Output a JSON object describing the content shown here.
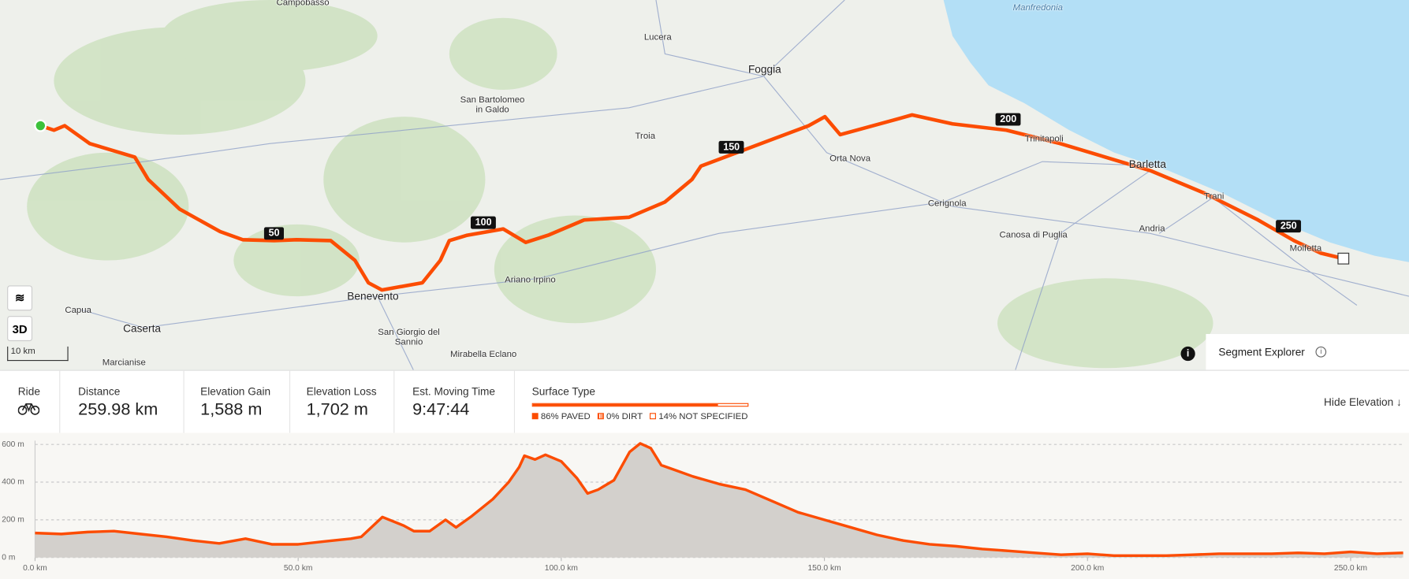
{
  "map": {
    "sea_label": "Manfredonia",
    "places": [
      "Campobasso",
      "Lucera",
      "Foggia",
      "San Bartolomeo in Galdo",
      "Troia",
      "Orta Nova",
      "Trinitapoli",
      "Barletta",
      "Cerignola",
      "Trani",
      "Andria",
      "Canosa di Puglia",
      "Molfetta",
      "Ariano Irpino",
      "Benevento",
      "Capua",
      "Caserta",
      "San Giorgio del Sannio",
      "Mirabella Eclano",
      "Marcianise"
    ],
    "km_markers": [
      "50",
      "100",
      "150",
      "200",
      "250"
    ],
    "three_d": "3D",
    "scale": "10 km",
    "segment_explorer": "Segment Explorer"
  },
  "stats": {
    "activity": "Ride",
    "items": [
      {
        "label": "Distance",
        "value": "259.98 km"
      },
      {
        "label": "Elevation Gain",
        "value": "1,588 m"
      },
      {
        "label": "Elevation Loss",
        "value": "1,702 m"
      },
      {
        "label": "Est. Moving Time",
        "value": "9:47:44"
      }
    ],
    "surface_label": "Surface Type",
    "surface_legend": [
      "86% PAVED",
      "0% DIRT",
      "14% NOT SPECIFIED"
    ],
    "hide_elevation": "Hide Elevation ↓"
  },
  "chart_data": {
    "type": "area",
    "color": "#fc4c02",
    "fill": "#d3d0cc",
    "grid": true,
    "x": [
      0,
      5,
      10,
      15,
      20,
      25,
      30,
      35,
      40,
      45,
      50,
      55,
      60,
      62,
      66,
      70,
      72,
      75,
      78,
      80,
      83,
      87,
      90,
      92,
      93,
      95,
      97,
      100,
      103,
      105,
      107,
      110,
      113,
      115,
      117,
      119,
      122,
      125,
      130,
      135,
      140,
      145,
      150,
      155,
      160,
      165,
      170,
      175,
      180,
      185,
      190,
      195,
      200,
      205,
      210,
      215,
      220,
      225,
      230,
      235,
      240,
      245,
      250,
      255,
      259.98
    ],
    "values": [
      130,
      125,
      135,
      140,
      125,
      110,
      90,
      75,
      100,
      70,
      70,
      85,
      100,
      110,
      215,
      170,
      140,
      140,
      200,
      160,
      220,
      310,
      400,
      480,
      540,
      520,
      545,
      510,
      420,
      340,
      360,
      410,
      560,
      605,
      580,
      490,
      460,
      430,
      390,
      360,
      300,
      240,
      200,
      160,
      120,
      90,
      70,
      60,
      45,
      35,
      25,
      15,
      20,
      10,
      10,
      10,
      15,
      20,
      20,
      20,
      25,
      20,
      30,
      20,
      25
    ],
    "xlim": [
      0,
      260
    ],
    "ylim": [
      0,
      620
    ],
    "xticks": [
      {
        "value": 0,
        "label": "0.0 km"
      },
      {
        "value": 50,
        "label": "50.0 km"
      },
      {
        "value": 100,
        "label": "100.0 km"
      },
      {
        "value": 150,
        "label": "150.0 km"
      },
      {
        "value": 200,
        "label": "200.0 km"
      },
      {
        "value": 250,
        "label": "250.0 km"
      }
    ],
    "yticks": [
      {
        "value": 0,
        "label": "0 m"
      },
      {
        "value": 200,
        "label": "200 m"
      },
      {
        "value": 400,
        "label": "400 m"
      },
      {
        "value": 600,
        "label": "600 m"
      }
    ]
  }
}
